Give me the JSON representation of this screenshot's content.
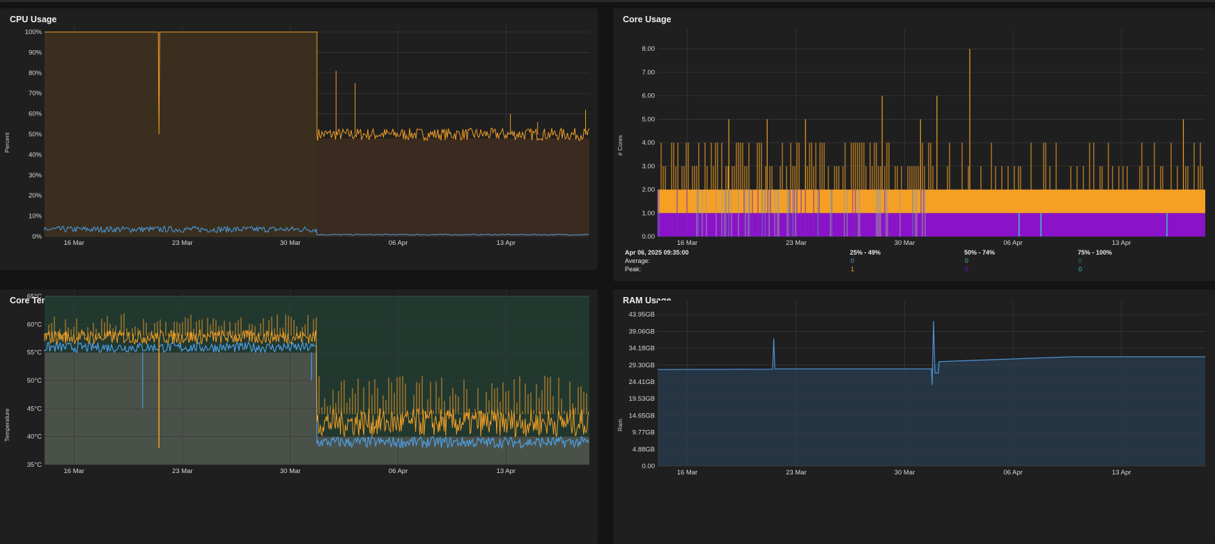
{
  "colors": {
    "bg": "#141414",
    "panel": "#1f1f1f",
    "grid": "#3a3a3a",
    "orange": "#f5a025",
    "blue": "#4d9fe6",
    "purple": "#8a12c9",
    "teal": "#3fc4c4",
    "ram_line": "#4a8fcf",
    "ram_fill": "#263543"
  },
  "icons": [],
  "panels": {
    "cpu": {
      "title": "CPU Usage",
      "ylabel": "Percent",
      "yticks": [
        "0%",
        "10%",
        "20%",
        "30%",
        "40%",
        "50%",
        "60%",
        "70%",
        "80%",
        "90%",
        "100%"
      ],
      "xticks": [
        "16 Mar",
        "23 Mar",
        "30 Mar",
        "06 Apr",
        "13 Apr"
      ]
    },
    "core": {
      "title": "Core Usage",
      "ylabel": "# Cores",
      "yticks": [
        "0.00",
        "1.00",
        "2.00",
        "3.00",
        "4.00",
        "5.00",
        "6.00",
        "7.00",
        "8.00"
      ],
      "xticks": [
        "16 Mar",
        "23 Mar",
        "30 Mar",
        "06 Apr",
        "13 Apr"
      ],
      "legend": {
        "timestamp": "Apr 06, 2025 09:35:00",
        "row_average": "Average:",
        "row_peak": "Peak:",
        "columns": [
          {
            "header": "25% - 49%",
            "average": "0",
            "peak": "1",
            "avg_color": "#4d9fe6",
            "peak_color": "#f5a025"
          },
          {
            "header": "50% - 74%",
            "average": "0",
            "peak": "0",
            "avg_color": "#3fc4a0",
            "peak_color": "#8a12c9"
          },
          {
            "header": "75% - 100%",
            "average": "0",
            "peak": "0",
            "avg_color": "#3a7a6a",
            "peak_color": "#3fc4c4"
          }
        ]
      }
    },
    "temp": {
      "title": "Core Temperature",
      "ylabel": "Temperature",
      "yticks": [
        "35°C",
        "40°C",
        "45°C",
        "50°C",
        "55°C",
        "60°C",
        "65°C"
      ],
      "xticks": [
        "16 Mar",
        "23 Mar",
        "30 Mar",
        "06 Apr",
        "13 Apr"
      ]
    },
    "ram": {
      "title": "RAM Usage",
      "ylabel": "Ram",
      "yticks": [
        "0.00",
        "4.88GB",
        "9.77GB",
        "14.65GB",
        "19.53GB",
        "24.41GB",
        "29.30GB",
        "34.18GB",
        "39.06GB",
        "43.95GB"
      ],
      "xticks": [
        "16 Mar",
        "23 Mar",
        "30 Mar",
        "06 Apr",
        "13 Apr"
      ]
    }
  }
}
